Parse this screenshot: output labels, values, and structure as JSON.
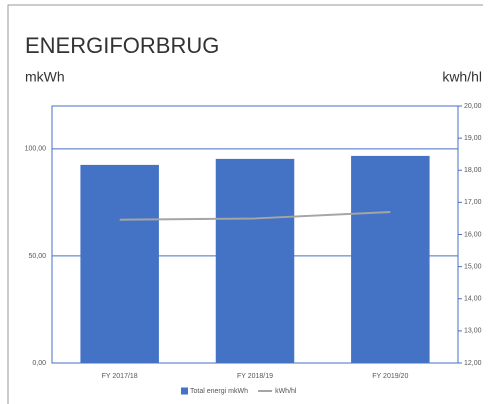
{
  "chart_data": {
    "type": "bar",
    "title": "ENERGIFORBRUG",
    "ylabel": "mkWh",
    "y2label": "kwh/hl",
    "categories": [
      "FY 2017/18",
      "FY 2018/19",
      "FY 2019/20"
    ],
    "series": [
      {
        "name": "Total energi mkWh",
        "color": "#4472c4",
        "values": [
          92.5,
          95.3,
          96.7
        ]
      },
      {
        "name": "kWh/hl",
        "type": "line",
        "axis": "y2",
        "color": "#a5a5a5",
        "values": [
          16.46,
          16.5,
          16.7
        ]
      }
    ],
    "ylim": [
      0,
      120
    ],
    "yticks": [
      {
        "value": 0,
        "label": "0,00"
      },
      {
        "value": 50,
        "label": "50,00"
      },
      {
        "value": 100,
        "label": "100,00"
      }
    ],
    "y2lim": [
      12,
      20
    ],
    "y2ticks": [
      {
        "value": 12,
        "label": "12,00"
      },
      {
        "value": 13,
        "label": "13,00"
      },
      {
        "value": 14,
        "label": "14,00"
      },
      {
        "value": 15,
        "label": "15,00"
      },
      {
        "value": 16,
        "label": "16,00"
      },
      {
        "value": 17,
        "label": "17,00"
      },
      {
        "value": 18,
        "label": "18,00"
      },
      {
        "value": 19,
        "label": "19,00"
      },
      {
        "value": 20,
        "label": "20,00"
      }
    ],
    "grid": true,
    "legend": "bottom"
  }
}
